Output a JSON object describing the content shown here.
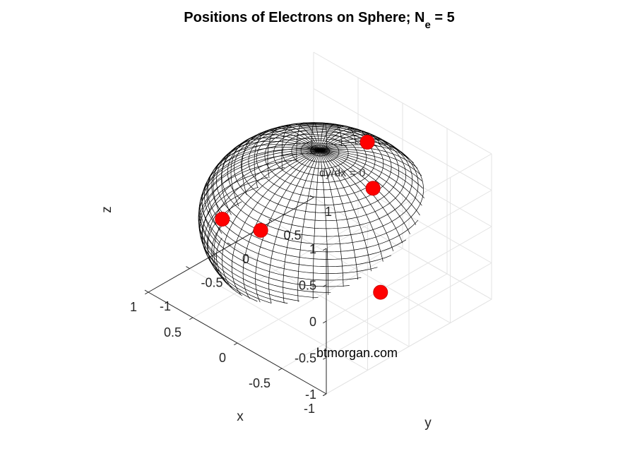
{
  "chart_data": {
    "type": "scatter",
    "title": "Positions of Electrons on Sphere; N",
    "title_subscript": "e",
    "title_suffix": " = 5",
    "xlabel": "x",
    "ylabel": "y",
    "zlabel": "z",
    "xlim": [
      -1,
      1
    ],
    "ylim": [
      -1,
      1
    ],
    "zlim": [
      -1,
      1
    ],
    "x_ticks": [
      "-1",
      "-0.5",
      "0",
      "0.5",
      "1"
    ],
    "y_ticks": [
      "-1",
      "-0.5",
      "0",
      "0.5",
      "1"
    ],
    "z_ticks": [
      "1",
      "0.5",
      "0",
      "-0.5",
      "-1"
    ],
    "grid": true,
    "surface": "unit sphere wireframe",
    "marker_color": "#ff0000",
    "wire_color": "#000000",
    "series": [
      {
        "points": [
          {
            "x": 0.28,
            "y": -0.88,
            "z": 0.43
          },
          {
            "x": -0.55,
            "y": 0.05,
            "z": 0.83
          },
          {
            "x": -0.95,
            "y": -0.29,
            "z": -0.1
          },
          {
            "x": 0.74,
            "y": 0.08,
            "z": -0.67
          },
          {
            "x": 0.35,
            "y": 0.95,
            "z": 0.25
          }
        ]
      }
    ],
    "annotation": "dy/dx = 0",
    "watermark": "btmorgan.com"
  }
}
